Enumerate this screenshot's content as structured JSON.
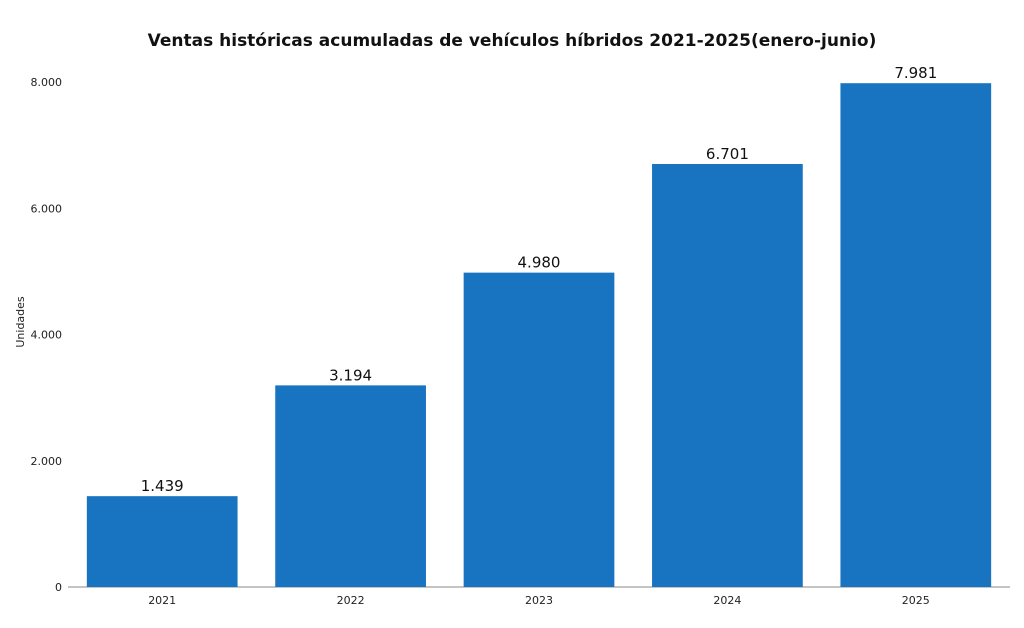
{
  "chart_data": {
    "type": "bar",
    "title": "Ventas históricas acumuladas de vehículos híbridos 2021-2025(enero-junio)",
    "xlabel": "",
    "ylabel": "Unidades",
    "categories": [
      "2021",
      "2022",
      "2023",
      "2024",
      "2025"
    ],
    "values": [
      1439,
      3194,
      4980,
      6701,
      7981
    ],
    "value_labels": [
      "1.439",
      "3.194",
      "4.980",
      "6.701",
      "7.981"
    ],
    "ylim": [
      0,
      8000
    ],
    "yticks": [
      0,
      2000,
      4000,
      6000,
      8000
    ],
    "ytick_labels": [
      "0",
      "2.000",
      "4.000",
      "6.000",
      "8.000"
    ],
    "grid": false,
    "bar_color": "#1874c0"
  }
}
